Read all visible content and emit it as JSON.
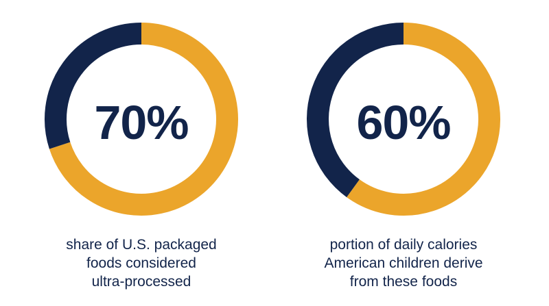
{
  "colors": {
    "accent": "#eba52b",
    "dark": "#12244a",
    "background": "#ffffff"
  },
  "chart_data": [
    {
      "type": "pie",
      "style": "donut",
      "label": "70%",
      "slices": [
        {
          "value": 70,
          "color": "#eba52b"
        },
        {
          "value": 30,
          "color": "#12244a"
        }
      ],
      "caption": [
        "share of U.S. packaged",
        "foods considered",
        "ultra-processed"
      ]
    },
    {
      "type": "pie",
      "style": "donut",
      "label": "60%",
      "slices": [
        {
          "value": 60,
          "color": "#eba52b"
        },
        {
          "value": 40,
          "color": "#12244a"
        }
      ],
      "caption": [
        "portion of daily calories",
        "American children derive",
        "from these foods"
      ]
    }
  ]
}
